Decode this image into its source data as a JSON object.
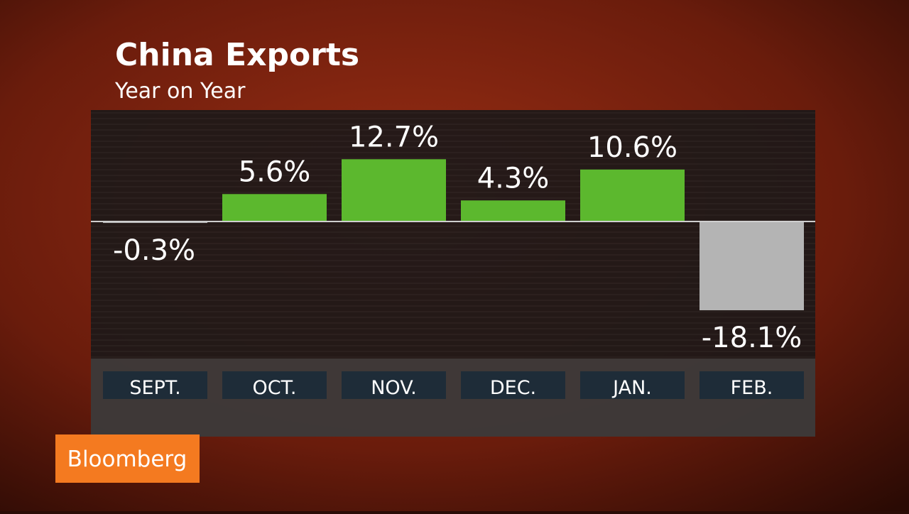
{
  "chart_data": {
    "type": "bar",
    "title": "China Exports",
    "subtitle": "Year on Year",
    "categories": [
      "SEPT.",
      "OCT.",
      "NOV.",
      "DEC.",
      "JAN.",
      "FEB."
    ],
    "values": [
      -0.3,
      5.6,
      12.7,
      4.3,
      10.6,
      -18.1
    ],
    "value_labels": [
      "-0.3%",
      "5.6%",
      "12.7%",
      "4.3%",
      "10.6%",
      "-18.1%"
    ],
    "color": "#5cb82e",
    "negative_color": "#b4b4b4"
  },
  "brand": "Bloomberg"
}
